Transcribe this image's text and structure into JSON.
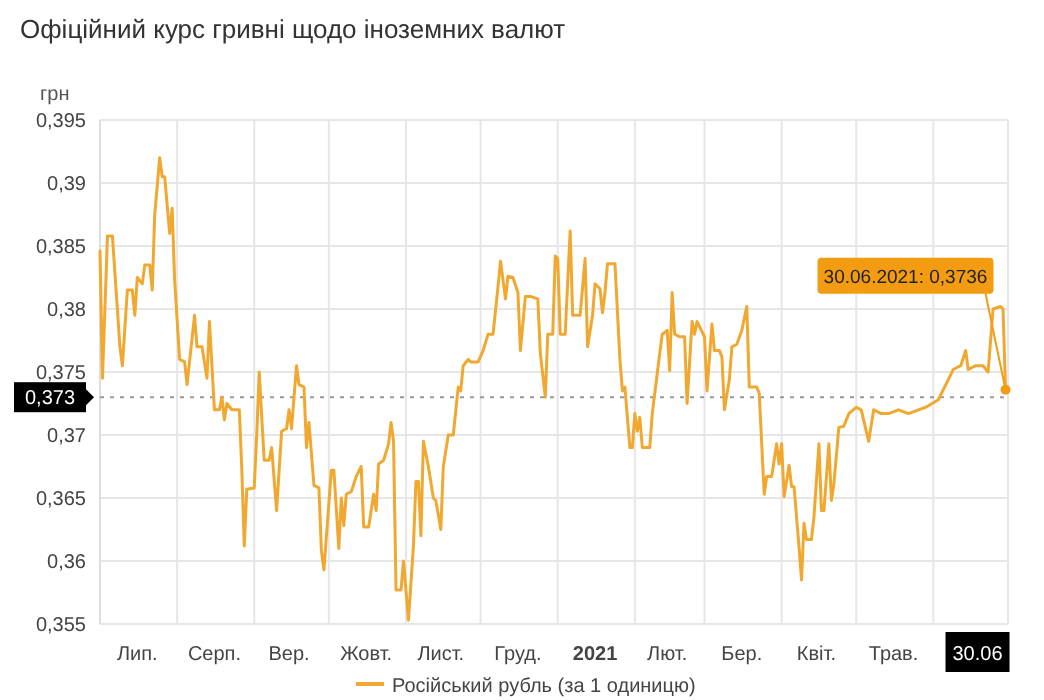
{
  "chart_data": {
    "type": "line",
    "title": "Офіційний курс гривні щодо іноземних валют",
    "ylabel": "грн",
    "x": [
      "2020-07-01",
      "2020-07-02",
      "2020-07-04",
      "2020-07-06",
      "2020-07-09",
      "2020-07-10",
      "2020-07-12",
      "2020-07-14",
      "2020-07-15",
      "2020-07-16",
      "2020-07-18",
      "2020-07-19",
      "2020-07-21",
      "2020-07-22",
      "2020-07-23",
      "2020-07-25",
      "2020-07-26",
      "2020-07-27",
      "2020-07-29",
      "2020-07-30",
      "2020-07-31",
      "2020-08-02",
      "2020-08-04",
      "2020-08-05",
      "2020-08-08",
      "2020-08-09",
      "2020-08-11",
      "2020-08-13",
      "2020-08-14",
      "2020-08-16",
      "2020-08-18",
      "2020-08-19",
      "2020-08-20",
      "2020-08-21",
      "2020-08-23",
      "2020-08-26",
      "2020-08-27",
      "2020-08-28",
      "2020-08-29",
      "2020-09-01",
      "2020-09-02",
      "2020-09-03",
      "2020-09-05",
      "2020-09-07",
      "2020-09-08",
      "2020-09-10",
      "2020-09-12",
      "2020-09-14",
      "2020-09-15",
      "2020-09-16",
      "2020-09-18",
      "2020-09-19",
      "2020-09-21",
      "2020-09-22",
      "2020-09-23",
      "2020-09-25",
      "2020-09-27",
      "2020-09-28",
      "2020-09-29",
      "2020-10-02",
      "2020-10-03",
      "2020-10-05",
      "2020-10-06",
      "2020-10-07",
      "2020-10-08",
      "2020-10-10",
      "2020-10-12",
      "2020-10-14",
      "2020-10-15",
      "2020-10-17",
      "2020-10-19",
      "2020-10-20",
      "2020-10-21",
      "2020-10-23",
      "2020-10-25",
      "2020-10-26",
      "2020-10-27",
      "2020-10-28",
      "2020-10-30",
      "2020-10-31",
      "2020-11-02",
      "2020-11-04",
      "2020-11-05",
      "2020-11-06",
      "2020-11-07",
      "2020-11-08",
      "2020-11-10",
      "2020-11-12",
      "2020-11-13",
      "2020-11-15",
      "2020-11-16",
      "2020-11-18",
      "2020-11-20",
      "2020-11-22",
      "2020-11-23",
      "2020-11-24",
      "2020-11-26",
      "2020-11-27",
      "2020-11-30",
      "2020-12-02",
      "2020-12-04",
      "2020-12-06",
      "2020-12-08",
      "2020-12-09",
      "2020-12-11",
      "2020-12-12",
      "2020-12-14",
      "2020-12-16",
      "2020-12-17",
      "2020-12-19",
      "2020-12-21",
      "2020-12-24",
      "2020-12-25",
      "2020-12-27",
      "2020-12-28",
      "2020-12-30",
      "2020-12-31",
      "2021-01-01",
      "2021-01-02",
      "2021-01-04",
      "2021-01-06",
      "2021-01-07",
      "2021-01-10",
      "2021-01-12",
      "2021-01-13",
      "2021-01-15",
      "2021-01-16",
      "2021-01-18",
      "2021-01-19",
      "2021-01-20",
      "2021-01-21",
      "2021-01-24",
      "2021-01-26",
      "2021-01-27",
      "2021-01-28",
      "2021-01-30",
      "2021-01-31",
      "2021-02-01",
      "2021-02-02",
      "2021-02-03",
      "2021-02-04",
      "2021-02-07",
      "2021-02-08",
      "2021-02-10",
      "2021-02-12",
      "2021-02-14",
      "2021-02-15",
      "2021-02-16",
      "2021-02-17",
      "2021-02-19",
      "2021-02-21",
      "2021-02-22",
      "2021-02-24",
      "2021-02-25",
      "2021-02-26",
      "2021-03-01",
      "2021-03-02",
      "2021-03-04",
      "2021-03-05",
      "2021-03-07",
      "2021-03-08",
      "2021-03-09",
      "2021-03-11",
      "2021-03-12",
      "2021-03-14",
      "2021-03-16",
      "2021-03-18",
      "2021-03-19",
      "2021-03-22",
      "2021-03-23",
      "2021-03-25",
      "2021-03-26",
      "2021-03-28",
      "2021-03-30",
      "2021-03-31",
      "2021-04-01",
      "2021-04-02",
      "2021-04-04",
      "2021-04-05",
      "2021-04-06",
      "2021-04-08",
      "2021-04-09",
      "2021-04-10",
      "2021-04-11",
      "2021-04-13",
      "2021-04-14",
      "2021-04-16",
      "2021-04-17",
      "2021-04-18",
      "2021-04-20",
      "2021-04-21",
      "2021-04-22",
      "2021-04-24",
      "2021-04-26",
      "2021-04-28",
      "2021-05-01",
      "2021-05-03",
      "2021-05-06",
      "2021-05-08",
      "2021-05-11",
      "2021-05-14",
      "2021-05-18",
      "2021-05-22",
      "2021-05-26",
      "2021-05-29",
      "2021-06-03",
      "2021-06-07",
      "2021-06-09",
      "2021-06-12",
      "2021-06-14",
      "2021-06-15",
      "2021-06-18",
      "2021-06-21",
      "2021-06-23",
      "2021-06-25",
      "2021-06-28",
      "2021-06-29",
      "2021-06-30"
    ],
    "series": [
      {
        "name": "Російський рубль (за 1 одиницю)",
        "color": "#f0a830",
        "values": [
          0.3846,
          0.3745,
          0.3858,
          0.3858,
          0.377,
          0.3755,
          0.3815,
          0.3815,
          0.3795,
          0.3825,
          0.382,
          0.3835,
          0.3835,
          0.3815,
          0.3875,
          0.392,
          0.3905,
          0.3905,
          0.386,
          0.388,
          0.3823,
          0.376,
          0.3758,
          0.374,
          0.3795,
          0.377,
          0.377,
          0.3745,
          0.379,
          0.372,
          0.372,
          0.373,
          0.3712,
          0.3725,
          0.372,
          0.372,
          0.3673,
          0.3612,
          0.3657,
          0.3658,
          0.37,
          0.375,
          0.368,
          0.368,
          0.369,
          0.364,
          0.3703,
          0.3705,
          0.372,
          0.3705,
          0.3755,
          0.374,
          0.3738,
          0.369,
          0.371,
          0.366,
          0.3658,
          0.3608,
          0.3593,
          0.3672,
          0.3672,
          0.361,
          0.365,
          0.3628,
          0.3653,
          0.3655,
          0.3667,
          0.3675,
          0.3627,
          0.3627,
          0.3653,
          0.364,
          0.3677,
          0.368,
          0.3693,
          0.371,
          0.3695,
          0.3577,
          0.3577,
          0.36,
          0.3553,
          0.3612,
          0.3663,
          0.3663,
          0.362,
          0.3695,
          0.3675,
          0.365,
          0.3648,
          0.3625,
          0.3675,
          0.37,
          0.37,
          0.3738,
          0.3735,
          0.3755,
          0.376,
          0.3758,
          0.3758,
          0.3767,
          0.378,
          0.378,
          0.3818,
          0.3838,
          0.3808,
          0.3826,
          0.3825,
          0.3813,
          0.3767,
          0.381,
          0.381,
          0.3808,
          0.3765,
          0.373,
          0.378,
          0.378,
          0.3842,
          0.384,
          0.378,
          0.378,
          0.3862,
          0.3795,
          0.3795,
          0.384,
          0.377,
          0.3795,
          0.382,
          0.3816,
          0.3797,
          0.3813,
          0.3836,
          0.3836,
          0.376,
          0.3735,
          0.3738,
          0.369,
          0.369,
          0.3717,
          0.3703,
          0.3714,
          0.369,
          0.369,
          0.3717,
          0.3749,
          0.378,
          0.3783,
          0.3751,
          0.3813,
          0.378,
          0.3778,
          0.3778,
          0.3725,
          0.379,
          0.378,
          0.379,
          0.3778,
          0.3735,
          0.3788,
          0.3767,
          0.3767,
          0.3762,
          0.372,
          0.3744,
          0.377,
          0.3772,
          0.3783,
          0.3802,
          0.3738,
          0.3738,
          0.3733,
          0.3653,
          0.3667,
          0.3667,
          0.3693,
          0.3677,
          0.3693,
          0.3651,
          0.3676,
          0.3659,
          0.3659,
          0.3611,
          0.3585,
          0.363,
          0.3617,
          0.3617,
          0.3635,
          0.3693,
          0.364,
          0.364,
          0.3693,
          0.3648,
          0.3661,
          0.3706,
          0.3707,
          0.3717,
          0.3722,
          0.372,
          0.3695,
          0.372,
          0.3717,
          0.3717,
          0.372,
          0.3717,
          0.372,
          0.3722,
          0.3728,
          0.3744,
          0.3752,
          0.3755,
          0.3767,
          0.3752,
          0.3755,
          0.3755,
          0.375,
          0.38,
          0.3802,
          0.38,
          0.3736
        ]
      }
    ],
    "xlim": [
      "2020-07-01",
      "2021-07-01"
    ],
    "xticks": [
      {
        "value": "2020-07-16",
        "label": "Лип."
      },
      {
        "value": "2020-08-16",
        "label": "Серп."
      },
      {
        "value": "2020-09-15",
        "label": "Вер."
      },
      {
        "value": "2020-10-16",
        "label": "Жовт."
      },
      {
        "value": "2020-11-15",
        "label": "Лист."
      },
      {
        "value": "2020-12-16",
        "label": "Груд."
      },
      {
        "value": "2021-01-16",
        "label": "2021"
      },
      {
        "value": "2021-02-14",
        "label": "Лют."
      },
      {
        "value": "2021-03-16",
        "label": "Бер."
      },
      {
        "value": "2021-04-15",
        "label": "Квіт."
      },
      {
        "value": "2021-05-16",
        "label": "Трав."
      },
      {
        "value": "2021-06-30",
        "label": "30.06"
      },
      {
        "value": "2020-08-01",
        "label": null
      },
      {
        "value": "2020-09-01",
        "label": null
      },
      {
        "value": "2020-10-01",
        "label": null
      },
      {
        "value": "2020-11-01",
        "label": null
      },
      {
        "value": "2020-12-01",
        "label": null
      },
      {
        "value": "2021-01-01",
        "label": null
      },
      {
        "value": "2021-02-01",
        "label": null
      },
      {
        "value": "2021-03-01",
        "label": null
      },
      {
        "value": "2021-04-01",
        "label": null
      },
      {
        "value": "2021-05-01",
        "label": null
      },
      {
        "value": "2021-06-01",
        "label": null
      },
      {
        "value": "2021-07-01",
        "label": null
      }
    ],
    "ylim": [
      0.355,
      0.395
    ],
    "yticks": [
      {
        "value": 0.355,
        "label": "0,355"
      },
      {
        "value": 0.36,
        "label": "0,36"
      },
      {
        "value": 0.365,
        "label": "0,365"
      },
      {
        "value": 0.37,
        "label": "0,37"
      },
      {
        "value": 0.375,
        "label": "0,375"
      },
      {
        "value": 0.38,
        "label": "0,38"
      },
      {
        "value": 0.385,
        "label": "0,385"
      },
      {
        "value": 0.39,
        "label": "0,39"
      },
      {
        "value": 0.395,
        "label": "0,395"
      }
    ],
    "ref_lines": [
      {
        "axis": "y",
        "value": 0.373,
        "label": "0,373",
        "line_style": "dotted"
      }
    ],
    "annotations": [
      {
        "text": "30.06.2021: 0,3736",
        "x": "2021-06-30",
        "y": 0.3736
      }
    ],
    "grid": true,
    "legend": "bottom",
    "marker": "none",
    "line_style": "solid"
  }
}
